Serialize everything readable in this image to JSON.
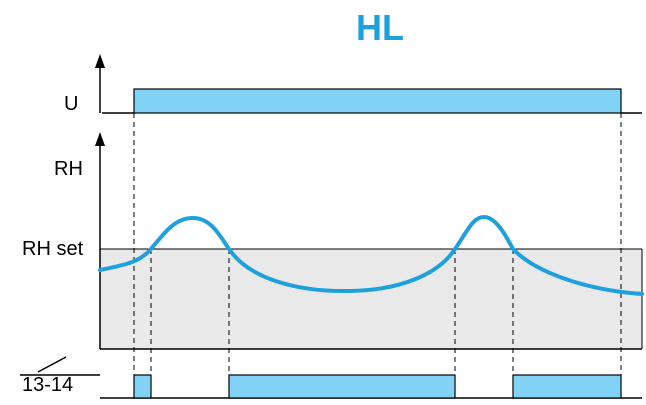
{
  "title": "HL",
  "labels": {
    "supply": "U",
    "humidity": "RH",
    "setpoint": "RH set",
    "contact": "13-14"
  },
  "colors": {
    "accent": "#1ea0dc",
    "fill": "#82d2f5",
    "band": "#e9e9e9",
    "line": "#000000"
  }
}
